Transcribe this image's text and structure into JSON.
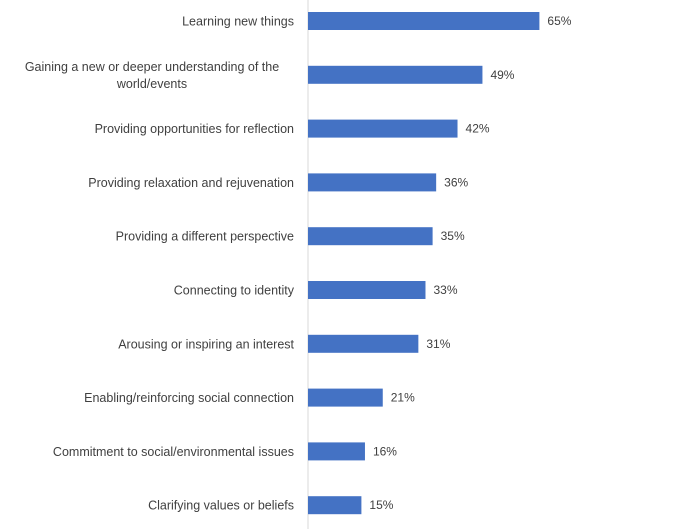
{
  "chart_data": {
    "type": "bar",
    "orientation": "horizontal",
    "categories": [
      [
        "Learning new things"
      ],
      [
        "Gaining a new or deeper understanding of the",
        "world/events"
      ],
      [
        "Providing opportunities for reflection"
      ],
      [
        "Providing relaxation and rejuvenation"
      ],
      [
        "Providing a different perspective"
      ],
      [
        "Connecting to identity"
      ],
      [
        "Arousing or inspiring an interest"
      ],
      [
        "Enabling/reinforcing social connection"
      ],
      [
        "Commitment to social/environmental issues"
      ],
      [
        "Clarifying values or beliefs"
      ]
    ],
    "values": [
      65,
      49,
      42,
      36,
      35,
      33,
      31,
      21,
      16,
      15
    ],
    "value_labels": [
      "65%",
      "49%",
      "42%",
      "36%",
      "35%",
      "33%",
      "31%",
      "21%",
      "16%",
      "15%"
    ],
    "value_unit": "%",
    "xlim": [
      0,
      100
    ],
    "grid": false,
    "legend": "none",
    "colors": {
      "bar": "#4472C4",
      "axis": "#d9d9d9",
      "text": "#404040"
    }
  }
}
